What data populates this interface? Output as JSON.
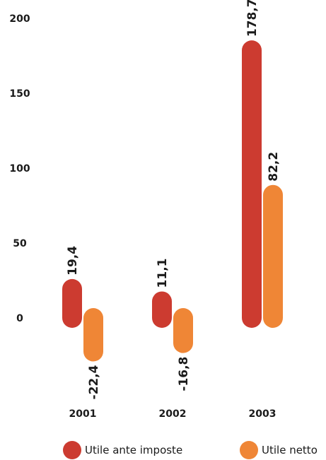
{
  "chart_data": {
    "type": "bar",
    "categories": [
      "2001",
      "2002",
      "2003"
    ],
    "series": [
      {
        "name": "Utile ante imposte",
        "color": "#cc3b30",
        "values": [
          19.4,
          11.1,
          178.7
        ],
        "labels": [
          "19,4",
          "11,1",
          "178,7"
        ]
      },
      {
        "name": "Utile netto",
        "color": "#ef8636",
        "values": [
          -22.4,
          -16.8,
          82.2
        ],
        "labels": [
          "-22,4",
          "-16,8",
          "82,2"
        ]
      }
    ],
    "yticks": [
      "0",
      "50",
      "100",
      "150",
      "200"
    ],
    "ylim": [
      -60,
      200
    ],
    "legend_position": "bottom",
    "grid": false
  }
}
